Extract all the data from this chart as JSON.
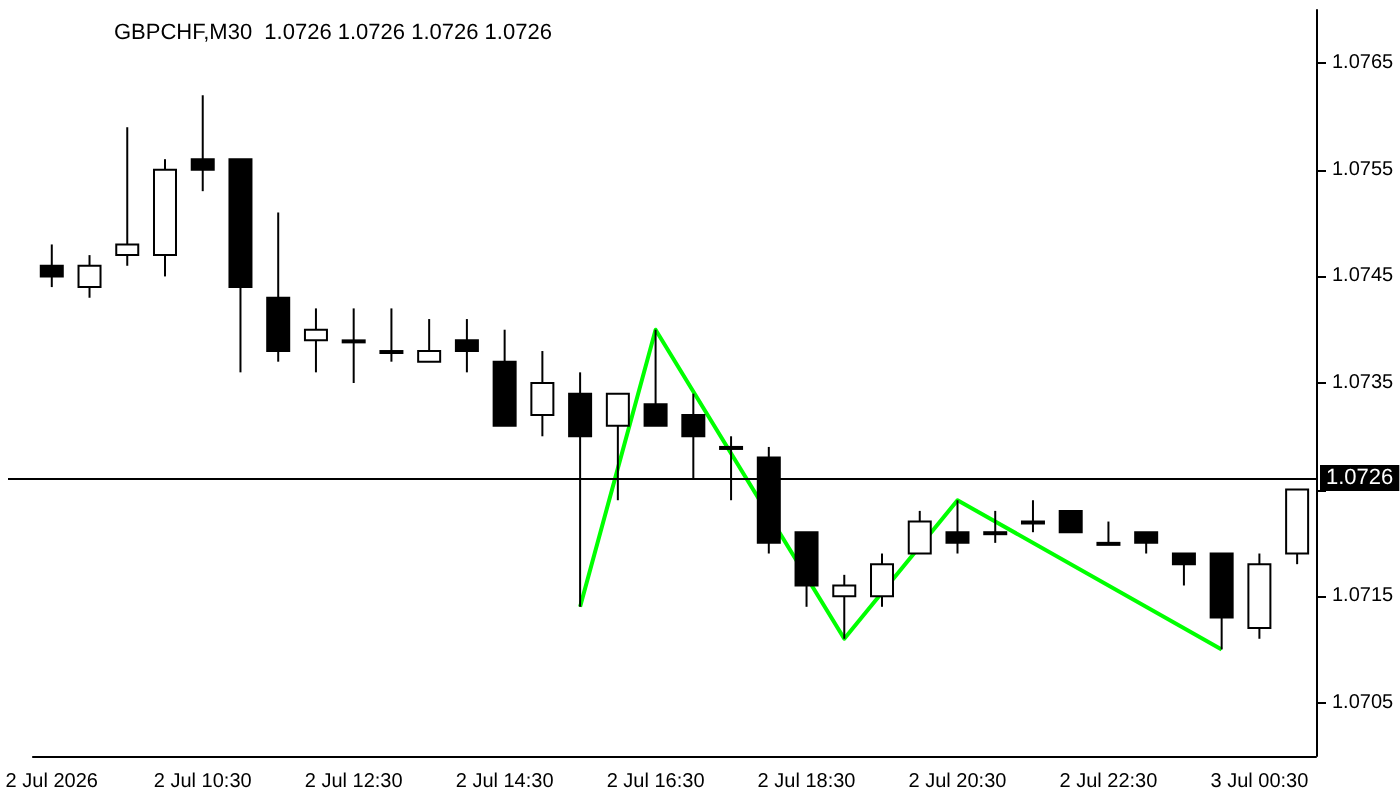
{
  "chart_data": {
    "type": "candlestick",
    "title": "GBPCHF,M30  1.0726 1.0726 1.0726 1.0726",
    "categories": [
      "2 Jul 2026",
      null,
      null,
      null,
      "2 Jul 10:30",
      null,
      null,
      null,
      "2 Jul 12:30",
      null,
      null,
      null,
      "2 Jul 14:30",
      null,
      null,
      null,
      "2 Jul 16:30",
      null,
      null,
      null,
      "2 Jul 18:30",
      null,
      null,
      null,
      "2 Jul 20:30",
      null,
      null,
      null,
      "2 Jul 22:30",
      null,
      null,
      null,
      "3 Jul 00:30",
      null
    ],
    "ohlc": [
      [
        1.0746,
        1.0748,
        1.0744,
        1.0745
      ],
      [
        1.0744,
        1.0747,
        1.0743,
        1.0746
      ],
      [
        1.0747,
        1.0759,
        1.0746,
        1.0748
      ],
      [
        1.0747,
        1.0756,
        1.0745,
        1.0755
      ],
      [
        1.0756,
        1.0762,
        1.0753,
        1.0755
      ],
      [
        1.0756,
        1.0756,
        1.0736,
        1.0744
      ],
      [
        1.0743,
        1.0751,
        1.0737,
        1.0738
      ],
      [
        1.0739,
        1.0742,
        1.0736,
        1.074
      ],
      [
        1.0739,
        1.0742,
        1.0735,
        1.0739
      ],
      [
        1.0738,
        1.0742,
        1.0737,
        1.0738
      ],
      [
        1.0737,
        1.0741,
        1.0737,
        1.0738
      ],
      [
        1.0739,
        1.0741,
        1.0736,
        1.0738
      ],
      [
        1.0737,
        1.074,
        1.0731,
        1.0731
      ],
      [
        1.0732,
        1.0738,
        1.073,
        1.0735
      ],
      [
        1.0734,
        1.0736,
        1.0714,
        1.073
      ],
      [
        1.0731,
        1.0734,
        1.0724,
        1.0734
      ],
      [
        1.0733,
        1.074,
        1.0731,
        1.0731
      ],
      [
        1.0732,
        1.0734,
        1.0726,
        1.073
      ],
      [
        1.0729,
        1.073,
        1.0724,
        1.0729
      ],
      [
        1.0728,
        1.0729,
        1.0719,
        1.072
      ],
      [
        1.0721,
        1.0721,
        1.0714,
        1.0716
      ],
      [
        1.0715,
        1.0717,
        1.0711,
        1.0716
      ],
      [
        1.0715,
        1.0719,
        1.0714,
        1.0718
      ],
      [
        1.0719,
        1.0723,
        1.0719,
        1.0722
      ],
      [
        1.0721,
        1.0724,
        1.0719,
        1.072
      ],
      [
        1.0721,
        1.0723,
        1.072,
        1.0721
      ],
      [
        1.0722,
        1.0724,
        1.0721,
        1.0722
      ],
      [
        1.0723,
        1.0723,
        1.0721,
        1.0721
      ],
      [
        1.072,
        1.0722,
        1.072,
        1.072
      ],
      [
        1.0721,
        1.0721,
        1.0719,
        1.072
      ],
      [
        1.0719,
        1.0719,
        1.0716,
        1.0718
      ],
      [
        1.0719,
        1.0719,
        1.071,
        1.0713
      ],
      [
        1.0712,
        1.0719,
        1.0711,
        1.0718
      ],
      [
        1.0719,
        1.0725,
        1.0718,
        1.0725
      ]
    ],
    "series": [
      {
        "type": "line",
        "color": "#00ff00",
        "values": [
          null,
          null,
          null,
          null,
          null,
          null,
          null,
          null,
          null,
          null,
          null,
          null,
          null,
          null,
          1.0714,
          null,
          1.074,
          null,
          null,
          null,
          null,
          1.0711,
          null,
          null,
          1.0724,
          null,
          null,
          null,
          null,
          null,
          null,
          1.071,
          null,
          null
        ]
      }
    ],
    "ylim": [
      1.07,
      1.077
    ],
    "yticks": [
      1.0705,
      1.0715,
      {
        "value": 1.0725,
        "label": null
      },
      1.0735,
      1.0745,
      1.0755,
      1.0765
    ],
    "ref_lines": [
      {
        "axis": "y",
        "value": 1.0726,
        "label": "1.0726"
      }
    ],
    "grid": false,
    "legend": false
  }
}
